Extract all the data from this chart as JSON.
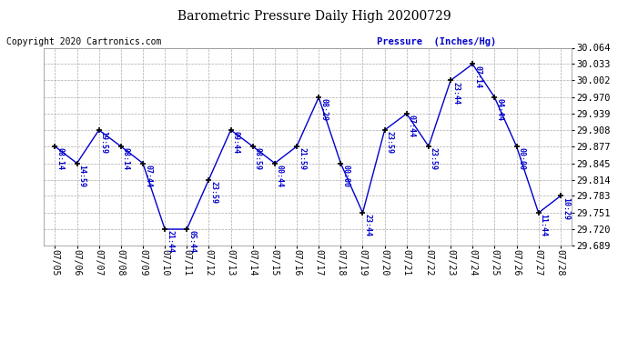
{
  "title": "Barometric Pressure Daily High 20200729",
  "copyright": "Copyright 2020 Cartronics.com",
  "pressure_label": "Pressure  (Inches/Hg)",
  "dates": [
    "07/05",
    "07/06",
    "07/07",
    "07/08",
    "07/09",
    "07/10",
    "07/11",
    "07/12",
    "07/13",
    "07/14",
    "07/15",
    "07/16",
    "07/17",
    "07/18",
    "07/19",
    "07/20",
    "07/21",
    "07/22",
    "07/23",
    "07/24",
    "07/25",
    "07/26",
    "07/27",
    "07/28"
  ],
  "pressures": [
    29.877,
    29.845,
    29.908,
    29.877,
    29.845,
    29.72,
    29.72,
    29.814,
    29.908,
    29.877,
    29.845,
    29.877,
    29.97,
    29.845,
    29.751,
    29.908,
    29.939,
    29.877,
    30.002,
    30.033,
    29.97,
    29.877,
    29.751,
    29.783
  ],
  "time_labels": [
    "08:14",
    "14:59",
    "19:59",
    "08:14",
    "07:44",
    "21:44",
    "05:44",
    "23:59",
    "09:44",
    "08:59",
    "00:44",
    "21:59",
    "08:29",
    "00:00",
    "23:44",
    "23:59",
    "07:44",
    "23:59",
    "23:44",
    "07:14",
    "04:44",
    "00:00",
    "11:44",
    "10:29"
  ],
  "line_color": "#0000cc",
  "marker_color": "#000000",
  "grid_color": "#aaaaaa",
  "background_color": "#ffffff",
  "title_color": "#000000",
  "copyright_color": "#000000",
  "pressure_label_color": "#0000cc",
  "label_color": "#0000cc",
  "tick_label_color": "#000000",
  "ylim_min": 29.689,
  "ylim_max": 30.064,
  "ytick_vals": [
    29.689,
    29.72,
    29.751,
    29.783,
    29.814,
    29.845,
    29.877,
    29.908,
    29.939,
    29.97,
    30.002,
    30.033,
    30.064
  ]
}
